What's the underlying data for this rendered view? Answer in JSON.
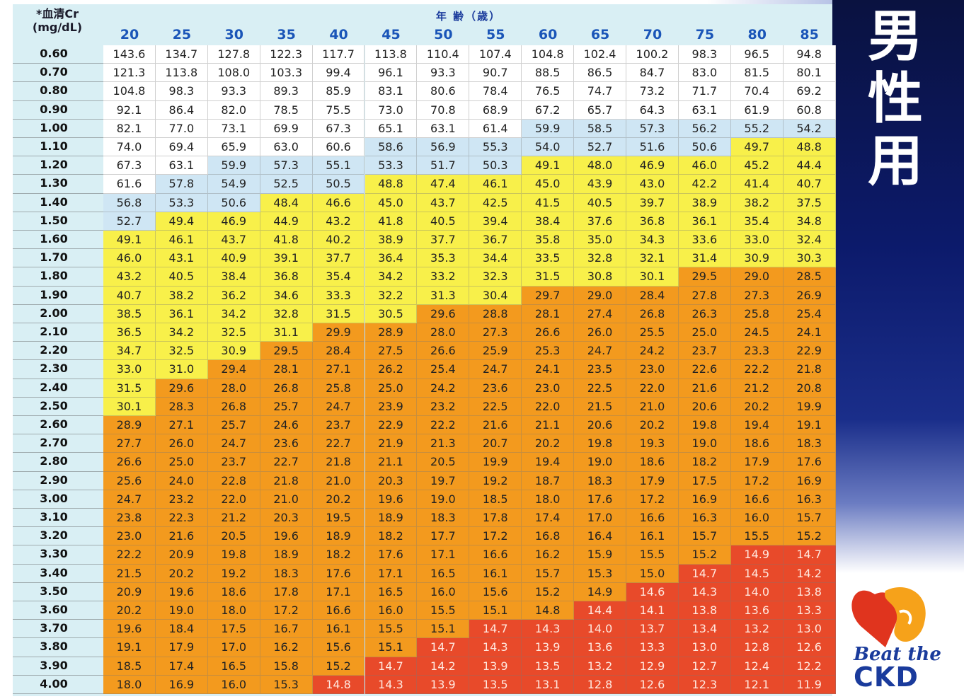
{
  "title": "男性用",
  "title_chars": [
    "男",
    "性",
    "用"
  ],
  "header": {
    "cr_label": "*血清Cr",
    "cr_unit": "(mg/dL)",
    "age_label": "年 齢（歳）"
  },
  "ages": [
    "20",
    "25",
    "30",
    "35",
    "40",
    "45",
    "50",
    "55",
    "60",
    "65",
    "70",
    "75",
    "80",
    "85"
  ],
  "rows": [
    {
      "cr": "0.60",
      "values": [
        "143.6",
        "134.7",
        "127.8",
        "122.3",
        "117.7",
        "113.8",
        "110.4",
        "107.4",
        "104.8",
        "102.4",
        "100.2",
        "98.3",
        "96.5",
        "94.8"
      ],
      "colors": "wwwwwwwwwwwwww"
    },
    {
      "cr": "0.70",
      "values": [
        "121.3",
        "113.8",
        "108.0",
        "103.3",
        "99.4",
        "96.1",
        "93.3",
        "90.7",
        "88.5",
        "86.5",
        "84.7",
        "83.0",
        "81.5",
        "80.1"
      ],
      "colors": "wwwwwwwwwwwwww"
    },
    {
      "cr": "0.80",
      "values": [
        "104.8",
        "98.3",
        "93.3",
        "89.3",
        "85.9",
        "83.1",
        "80.6",
        "78.4",
        "76.5",
        "74.7",
        "73.2",
        "71.7",
        "70.4",
        "69.2"
      ],
      "colors": "wwwwwwwwwwwwww"
    },
    {
      "cr": "0.90",
      "values": [
        "92.1",
        "86.4",
        "82.0",
        "78.5",
        "75.5",
        "73.0",
        "70.8",
        "68.9",
        "67.2",
        "65.7",
        "64.3",
        "63.1",
        "61.9",
        "60.8"
      ],
      "colors": "wwwwwwwwwwwwww"
    },
    {
      "cr": "1.00",
      "values": [
        "82.1",
        "77.0",
        "73.1",
        "69.9",
        "67.3",
        "65.1",
        "63.1",
        "61.4",
        "59.9",
        "58.5",
        "57.3",
        "56.2",
        "55.2",
        "54.2"
      ],
      "colors": "wwwwwwwwbbbbbb"
    },
    {
      "cr": "1.10",
      "values": [
        "74.0",
        "69.4",
        "65.9",
        "63.0",
        "60.6",
        "58.6",
        "56.9",
        "55.3",
        "54.0",
        "52.7",
        "51.6",
        "50.6",
        "49.7",
        "48.8"
      ],
      "colors": "wwwwwbbbbbbbyy"
    },
    {
      "cr": "1.20",
      "values": [
        "67.3",
        "63.1",
        "59.9",
        "57.3",
        "55.1",
        "53.3",
        "51.7",
        "50.3",
        "49.1",
        "48.0",
        "46.9",
        "46.0",
        "45.2",
        "44.4"
      ],
      "colors": "wwbbbbbbyyyyyy"
    },
    {
      "cr": "1.30",
      "values": [
        "61.6",
        "57.8",
        "54.9",
        "52.5",
        "50.5",
        "48.8",
        "47.4",
        "46.1",
        "45.0",
        "43.9",
        "43.0",
        "42.2",
        "41.4",
        "40.7"
      ],
      "colors": "wbbbbyyyyyyyyy"
    },
    {
      "cr": "1.40",
      "values": [
        "56.8",
        "53.3",
        "50.6",
        "48.4",
        "46.6",
        "45.0",
        "43.7",
        "42.5",
        "41.5",
        "40.5",
        "39.7",
        "38.9",
        "38.2",
        "37.5"
      ],
      "colors": "bbbyyyyyyyyyyy"
    },
    {
      "cr": "1.50",
      "values": [
        "52.7",
        "49.4",
        "46.9",
        "44.9",
        "43.2",
        "41.8",
        "40.5",
        "39.4",
        "38.4",
        "37.6",
        "36.8",
        "36.1",
        "35.4",
        "34.8"
      ],
      "colors": "byyyyyyyyyyyyy"
    },
    {
      "cr": "1.60",
      "values": [
        "49.1",
        "46.1",
        "43.7",
        "41.8",
        "40.2",
        "38.9",
        "37.7",
        "36.7",
        "35.8",
        "35.0",
        "34.3",
        "33.6",
        "33.0",
        "32.4"
      ],
      "colors": "yyyyyyyyyyyyyy"
    },
    {
      "cr": "1.70",
      "values": [
        "46.0",
        "43.1",
        "40.9",
        "39.1",
        "37.7",
        "36.4",
        "35.3",
        "34.4",
        "33.5",
        "32.8",
        "32.1",
        "31.4",
        "30.9",
        "30.3"
      ],
      "colors": "yyyyyyyyyyyyyy"
    },
    {
      "cr": "1.80",
      "values": [
        "43.2",
        "40.5",
        "38.4",
        "36.8",
        "35.4",
        "34.2",
        "33.2",
        "32.3",
        "31.5",
        "30.8",
        "30.1",
        "29.5",
        "29.0",
        "28.5"
      ],
      "colors": "yyyyyyyyyyyooo"
    },
    {
      "cr": "1.90",
      "values": [
        "40.7",
        "38.2",
        "36.2",
        "34.6",
        "33.3",
        "32.2",
        "31.3",
        "30.4",
        "29.7",
        "29.0",
        "28.4",
        "27.8",
        "27.3",
        "26.9"
      ],
      "colors": "yyyyyyyyoooooo"
    },
    {
      "cr": "2.00",
      "values": [
        "38.5",
        "36.1",
        "34.2",
        "32.8",
        "31.5",
        "30.5",
        "29.6",
        "28.8",
        "28.1",
        "27.4",
        "26.8",
        "26.3",
        "25.8",
        "25.4"
      ],
      "colors": "yyyyyyoooooooo"
    },
    {
      "cr": "2.10",
      "values": [
        "36.5",
        "34.2",
        "32.5",
        "31.1",
        "29.9",
        "28.9",
        "28.0",
        "27.3",
        "26.6",
        "26.0",
        "25.5",
        "25.0",
        "24.5",
        "24.1"
      ],
      "colors": "yyyyoooooooooo"
    },
    {
      "cr": "2.20",
      "values": [
        "34.7",
        "32.5",
        "30.9",
        "29.5",
        "28.4",
        "27.5",
        "26.6",
        "25.9",
        "25.3",
        "24.7",
        "24.2",
        "23.7",
        "23.3",
        "22.9"
      ],
      "colors": "yyyooooooooooo"
    },
    {
      "cr": "2.30",
      "values": [
        "33.0",
        "31.0",
        "29.4",
        "28.1",
        "27.1",
        "26.2",
        "25.4",
        "24.7",
        "24.1",
        "23.5",
        "23.0",
        "22.6",
        "22.2",
        "21.8"
      ],
      "colors": "yyoooooooooooo"
    },
    {
      "cr": "2.40",
      "values": [
        "31.5",
        "29.6",
        "28.0",
        "26.8",
        "25.8",
        "25.0",
        "24.2",
        "23.6",
        "23.0",
        "22.5",
        "22.0",
        "21.6",
        "21.2",
        "20.8"
      ],
      "colors": "yooooooooooooo"
    },
    {
      "cr": "2.50",
      "values": [
        "30.1",
        "28.3",
        "26.8",
        "25.7",
        "24.7",
        "23.9",
        "23.2",
        "22.5",
        "22.0",
        "21.5",
        "21.0",
        "20.6",
        "20.2",
        "19.9"
      ],
      "colors": "yooooooooooooo"
    },
    {
      "cr": "2.60",
      "values": [
        "28.9",
        "27.1",
        "25.7",
        "24.6",
        "23.7",
        "22.9",
        "22.2",
        "21.6",
        "21.1",
        "20.6",
        "20.2",
        "19.8",
        "19.4",
        "19.1"
      ],
      "colors": "oooooooooooooo"
    },
    {
      "cr": "2.70",
      "values": [
        "27.7",
        "26.0",
        "24.7",
        "23.6",
        "22.7",
        "21.9",
        "21.3",
        "20.7",
        "20.2",
        "19.8",
        "19.3",
        "19.0",
        "18.6",
        "18.3"
      ],
      "colors": "oooooooooooooo"
    },
    {
      "cr": "2.80",
      "values": [
        "26.6",
        "25.0",
        "23.7",
        "22.7",
        "21.8",
        "21.1",
        "20.5",
        "19.9",
        "19.4",
        "19.0",
        "18.6",
        "18.2",
        "17.9",
        "17.6"
      ],
      "colors": "oooooooooooooo"
    },
    {
      "cr": "2.90",
      "values": [
        "25.6",
        "24.0",
        "22.8",
        "21.8",
        "21.0",
        "20.3",
        "19.7",
        "19.2",
        "18.7",
        "18.3",
        "17.9",
        "17.5",
        "17.2",
        "16.9"
      ],
      "colors": "oooooooooooooo"
    },
    {
      "cr": "3.00",
      "values": [
        "24.7",
        "23.2",
        "22.0",
        "21.0",
        "20.2",
        "19.6",
        "19.0",
        "18.5",
        "18.0",
        "17.6",
        "17.2",
        "16.9",
        "16.6",
        "16.3"
      ],
      "colors": "oooooooooooooo"
    },
    {
      "cr": "3.10",
      "values": [
        "23.8",
        "22.3",
        "21.2",
        "20.3",
        "19.5",
        "18.9",
        "18.3",
        "17.8",
        "17.4",
        "17.0",
        "16.6",
        "16.3",
        "16.0",
        "15.7"
      ],
      "colors": "oooooooooooooo"
    },
    {
      "cr": "3.20",
      "values": [
        "23.0",
        "21.6",
        "20.5",
        "19.6",
        "18.9",
        "18.2",
        "17.7",
        "17.2",
        "16.8",
        "16.4",
        "16.1",
        "15.7",
        "15.5",
        "15.2"
      ],
      "colors": "oooooooooooooo"
    },
    {
      "cr": "3.30",
      "values": [
        "22.2",
        "20.9",
        "19.8",
        "18.9",
        "18.2",
        "17.6",
        "17.1",
        "16.6",
        "16.2",
        "15.9",
        "15.5",
        "15.2",
        "14.9",
        "14.7"
      ],
      "colors": "oooooooooooorr"
    },
    {
      "cr": "3.40",
      "values": [
        "21.5",
        "20.2",
        "19.2",
        "18.3",
        "17.6",
        "17.1",
        "16.5",
        "16.1",
        "15.7",
        "15.3",
        "15.0",
        "14.7",
        "14.5",
        "14.2"
      ],
      "colors": "ooooooooooorrr"
    },
    {
      "cr": "3.50",
      "values": [
        "20.9",
        "19.6",
        "18.6",
        "17.8",
        "17.1",
        "16.5",
        "16.0",
        "15.6",
        "15.2",
        "14.9",
        "14.6",
        "14.3",
        "14.0",
        "13.8"
      ],
      "colors": "oooooooooorrrr"
    },
    {
      "cr": "3.60",
      "values": [
        "20.2",
        "19.0",
        "18.0",
        "17.2",
        "16.6",
        "16.0",
        "15.5",
        "15.1",
        "14.8",
        "14.4",
        "14.1",
        "13.8",
        "13.6",
        "13.3"
      ],
      "colors": "ooooooooorrrrr"
    },
    {
      "cr": "3.70",
      "values": [
        "19.6",
        "18.4",
        "17.5",
        "16.7",
        "16.1",
        "15.5",
        "15.1",
        "14.7",
        "14.3",
        "14.0",
        "13.7",
        "13.4",
        "13.2",
        "13.0"
      ],
      "colors": "ooooooorrrrrrr"
    },
    {
      "cr": "3.80",
      "values": [
        "19.1",
        "17.9",
        "17.0",
        "16.2",
        "15.6",
        "15.1",
        "14.7",
        "14.3",
        "13.9",
        "13.6",
        "13.3",
        "13.0",
        "12.8",
        "12.6"
      ],
      "colors": "oooooorrrrrrrr"
    },
    {
      "cr": "3.90",
      "values": [
        "18.5",
        "17.4",
        "16.5",
        "15.8",
        "15.2",
        "14.7",
        "14.2",
        "13.9",
        "13.5",
        "13.2",
        "12.9",
        "12.7",
        "12.4",
        "12.2"
      ],
      "colors": "ooooorrrrrrrrr"
    },
    {
      "cr": "4.00",
      "values": [
        "18.0",
        "16.9",
        "16.0",
        "15.3",
        "14.8",
        "14.3",
        "13.9",
        "13.5",
        "13.1",
        "12.8",
        "12.6",
        "12.3",
        "12.1",
        "11.9"
      ],
      "colors": "oooorrrrrrrrrr"
    }
  ],
  "logo": {
    "line1": "Beat the",
    "line2": "CKD"
  },
  "colors": {
    "white": "#ffffff",
    "blue": "#cfe6f4",
    "yellow": "#f8f04a",
    "orange": "#f39a1e",
    "red": "#e84a2a",
    "panel": "#0c1a6b"
  }
}
